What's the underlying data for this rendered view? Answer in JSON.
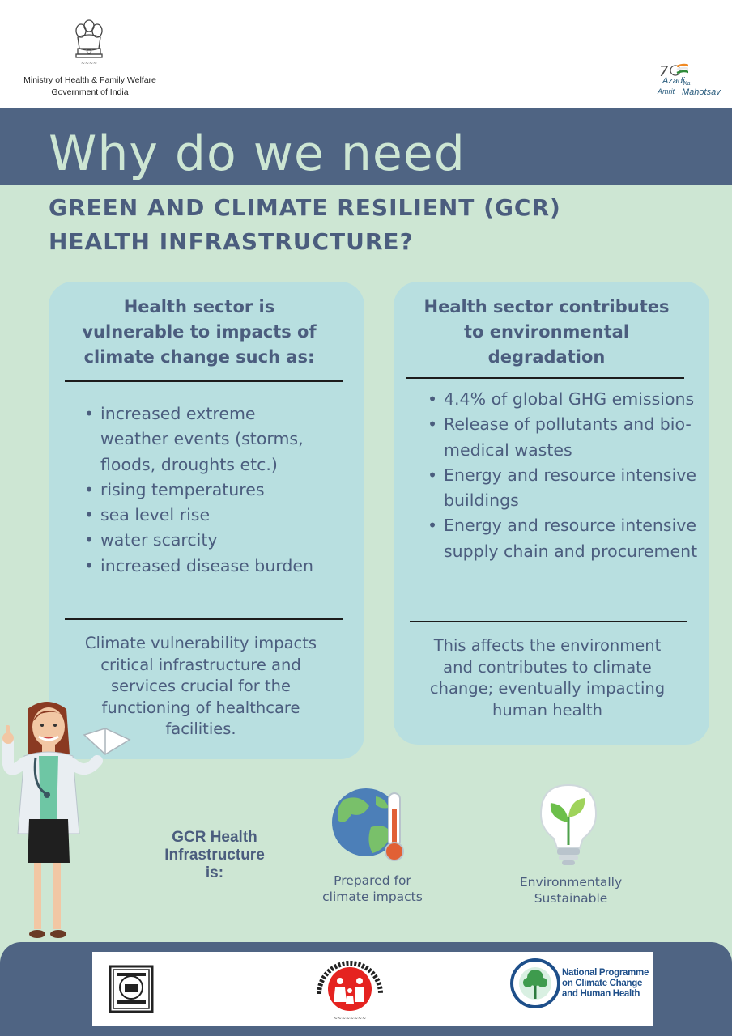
{
  "header": {
    "ministry_line1": "Ministry of Health & Family Welfare",
    "ministry_line2": "Government of India",
    "emblem_icon": "national-emblem-icon",
    "azadi_logo": {
      "icon": "azadi-ka-amrit-mahotsav-logo",
      "line1": "Azadi",
      "line2": "Ka",
      "line3": "Amrit",
      "line4": "Mahotsav"
    }
  },
  "title": {
    "main": "Why do we need",
    "sub_line1": "GREEN AND CLIMATE RESILIENT (GCR)",
    "sub_line2": "HEALTH INFRASTRUCTURE?"
  },
  "left_card": {
    "title_line1": "Health sector is",
    "title_line2": "vulnerable to impacts of",
    "title_line3": "climate change such as:",
    "bullets": [
      "increased extreme weather events (storms, floods, droughts etc.)",
      "rising temperatures",
      "sea level rise",
      "water scarcity",
      "increased disease burden"
    ],
    "footer_line1": "Climate vulnerability impacts",
    "footer_line2": "critical infrastructure and",
    "footer_line3": "services crucial for the",
    "footer_line4": "functioning of healthcare",
    "footer_line5": "facilities."
  },
  "right_card": {
    "title_line1": "Health sector contributes",
    "title_line2": "to environmental",
    "title_line3": "degradation",
    "bullets": [
      "4.4% of global GHG emissions",
      "Release of pollutants and bio-medical wastes",
      "Energy and resource intensive buildings",
      "Energy and resource intensive supply chain and procurement"
    ],
    "footer_line1": "This affects the environment",
    "footer_line2": "and contributes to climate",
    "footer_line3": "change; eventually impacting",
    "footer_line4": "human health"
  },
  "gcr": {
    "label_line1": "GCR Health",
    "label_line2": "Infrastructure",
    "label_line3": "is:",
    "items": [
      {
        "icon": "globe-thermometer-icon",
        "line1": "Prepared for",
        "line2": "climate impacts"
      },
      {
        "icon": "plant-bulb-icon",
        "line1": "Environmentally",
        "line2": "Sustainable"
      }
    ],
    "illustration": "doctor-illustration"
  },
  "footer": {
    "logos": [
      "ncdc-seal-logo",
      "national-health-mission-logo",
      "npcchh-logo"
    ],
    "npcchh_line1": "National Programme",
    "npcchh_line2": "on Climate Change",
    "npcchh_line3": "and Human Health"
  },
  "colors": {
    "background": "#cde6d3",
    "band": "#4f6483",
    "card": "#b8dfe0",
    "text": "#4b5d7e",
    "title_light": "#cde6d3"
  }
}
